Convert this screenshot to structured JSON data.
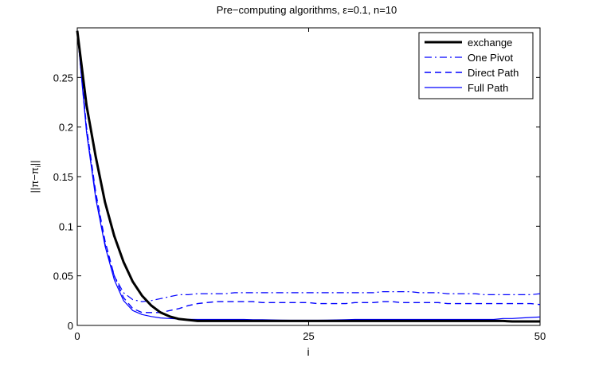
{
  "chart_data": {
    "type": "line",
    "title": "Pre−computing algorithms, ε=0.1, n=10",
    "xlabel": "i",
    "ylabel": "||π−π",
    "ylabel_sub": "i",
    "ylabel_tail": "||",
    "xlim": [
      0,
      50
    ],
    "ylim": [
      0,
      0.3
    ],
    "xticks": [
      0,
      25,
      50
    ],
    "xtick_labels": [
      "0",
      "25",
      "50"
    ],
    "yticks": [
      0,
      0.05,
      0.1,
      0.15,
      0.2,
      0.25
    ],
    "ytick_labels": [
      "0",
      "0.05",
      "0.1",
      "0.15",
      "0.2",
      "0.25"
    ],
    "grid": false,
    "legend_position": "top-right",
    "x": [
      0,
      1,
      2,
      3,
      4,
      5,
      6,
      7,
      8,
      9,
      10,
      11,
      12,
      13,
      14,
      15,
      16,
      17,
      18,
      19,
      20,
      21,
      22,
      23,
      24,
      25,
      26,
      27,
      28,
      29,
      30,
      31,
      32,
      33,
      34,
      35,
      36,
      37,
      38,
      39,
      40,
      41,
      42,
      43,
      44,
      45,
      46,
      47,
      48,
      49,
      50
    ],
    "series": [
      {
        "name": "exchange",
        "color": "#000000",
        "style": "solid-thick",
        "values": [
          0.297,
          0.222,
          0.17,
          0.124,
          0.09,
          0.064,
          0.044,
          0.03,
          0.02,
          0.013,
          0.009,
          0.0065,
          0.0055,
          0.0045,
          0.0045,
          0.0045,
          0.0045,
          0.0045,
          0.0045,
          0.0045,
          0.0045,
          0.0045,
          0.0045,
          0.0045,
          0.0045,
          0.0045,
          0.0045,
          0.0045,
          0.0045,
          0.0045,
          0.0045,
          0.0045,
          0.0045,
          0.0045,
          0.0045,
          0.0045,
          0.0045,
          0.0045,
          0.0045,
          0.0045,
          0.0045,
          0.0045,
          0.0045,
          0.0045,
          0.0045,
          0.0045,
          0.0045,
          0.004,
          0.004,
          0.004,
          0.004
        ]
      },
      {
        "name": "One Pivot",
        "color": "#0000ff",
        "style": "dashdot",
        "values": [
          0.297,
          0.197,
          0.131,
          0.082,
          0.05,
          0.033,
          0.026,
          0.024,
          0.025,
          0.027,
          0.029,
          0.031,
          0.031,
          0.032,
          0.032,
          0.032,
          0.032,
          0.033,
          0.033,
          0.033,
          0.033,
          0.033,
          0.033,
          0.033,
          0.033,
          0.033,
          0.033,
          0.033,
          0.033,
          0.033,
          0.033,
          0.033,
          0.033,
          0.034,
          0.034,
          0.034,
          0.034,
          0.033,
          0.033,
          0.033,
          0.032,
          0.032,
          0.032,
          0.032,
          0.031,
          0.031,
          0.031,
          0.031,
          0.031,
          0.031,
          0.032
        ]
      },
      {
        "name": "Direct Path",
        "color": "#0000ff",
        "style": "dashed",
        "values": [
          0.297,
          0.2,
          0.134,
          0.085,
          0.05,
          0.028,
          0.017,
          0.013,
          0.013,
          0.013,
          0.015,
          0.017,
          0.02,
          0.022,
          0.023,
          0.024,
          0.024,
          0.024,
          0.024,
          0.024,
          0.023,
          0.023,
          0.023,
          0.023,
          0.023,
          0.023,
          0.022,
          0.022,
          0.022,
          0.022,
          0.023,
          0.023,
          0.023,
          0.024,
          0.024,
          0.023,
          0.023,
          0.023,
          0.023,
          0.023,
          0.022,
          0.022,
          0.022,
          0.022,
          0.022,
          0.022,
          0.022,
          0.022,
          0.022,
          0.022,
          0.021
        ]
      },
      {
        "name": "Full Path",
        "color": "#0000ff",
        "style": "solid-thin",
        "values": [
          0.297,
          0.195,
          0.128,
          0.08,
          0.046,
          0.025,
          0.015,
          0.011,
          0.009,
          0.0075,
          0.007,
          0.0065,
          0.0062,
          0.006,
          0.006,
          0.006,
          0.006,
          0.006,
          0.006,
          0.0058,
          0.0057,
          0.0055,
          0.0053,
          0.0052,
          0.0052,
          0.0052,
          0.0052,
          0.0053,
          0.0055,
          0.0058,
          0.006,
          0.006,
          0.006,
          0.006,
          0.006,
          0.006,
          0.006,
          0.006,
          0.006,
          0.006,
          0.006,
          0.006,
          0.006,
          0.006,
          0.006,
          0.006,
          0.007,
          0.007,
          0.0075,
          0.008,
          0.0085
        ]
      }
    ]
  }
}
